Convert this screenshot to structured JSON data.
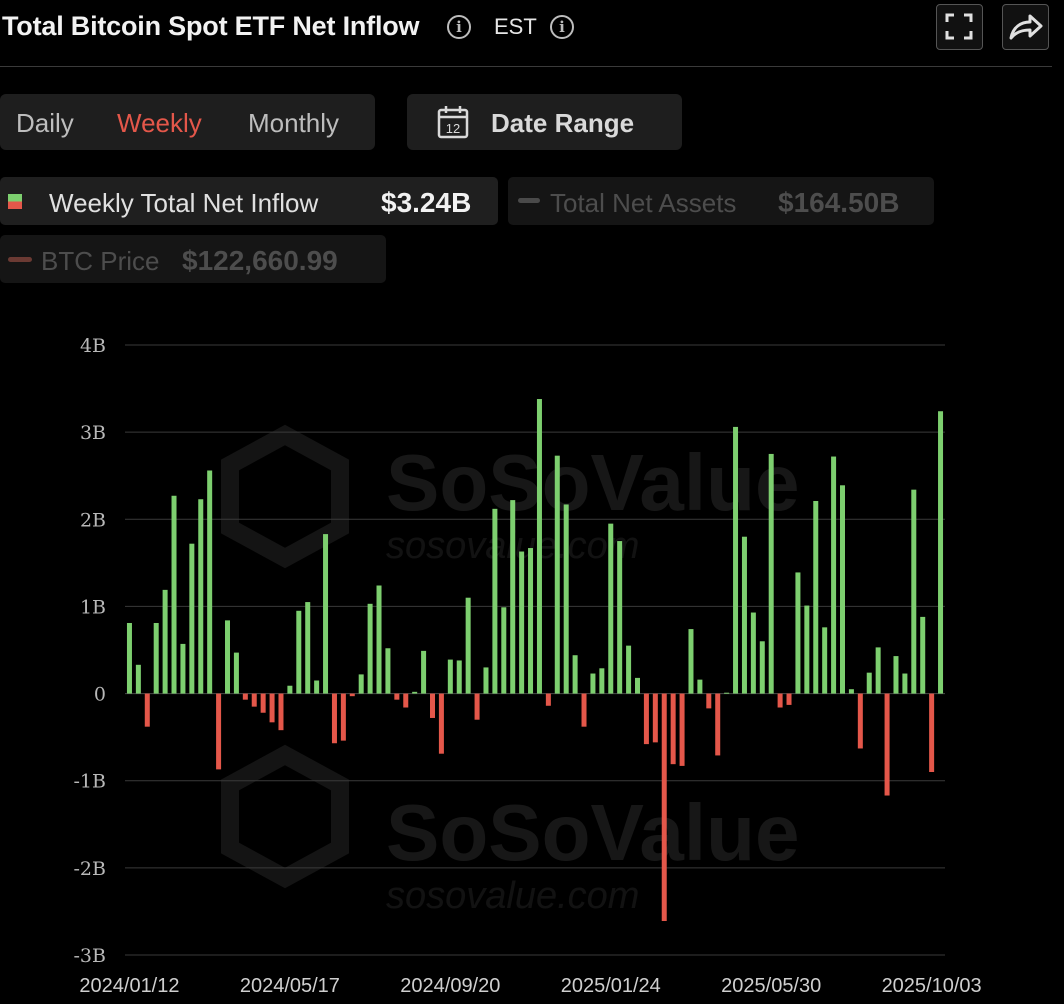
{
  "header": {
    "title": "Total Bitcoin Spot ETF Net Inflow",
    "timezone": "EST",
    "info_icon": "info-icon",
    "fullscreen_icon": "fullscreen-icon",
    "share_icon": "share-icon"
  },
  "period_tabs": [
    {
      "label": "Daily",
      "active": false
    },
    {
      "label": "Weekly",
      "active": true
    },
    {
      "label": "Monthly",
      "active": false
    }
  ],
  "date_range": {
    "label": "Date Range",
    "icon": "calendar-icon",
    "icon_text": "12"
  },
  "legend": [
    {
      "name": "Weekly Total Net Inflow",
      "value": "$3.24B",
      "active": true
    },
    {
      "name": "Total Net Assets",
      "value": "$164.50B",
      "active": false
    },
    {
      "name": "BTC Price",
      "value": "$122,660.99",
      "active": false
    }
  ],
  "watermark": {
    "brand": "SoSoValue",
    "url": "sosovalue.com"
  },
  "colors": {
    "positive": "#7dcf6f",
    "negative": "#e4574a",
    "active_tab": "#e4574a"
  },
  "chart_data": {
    "type": "bar",
    "title": "Total Bitcoin Spot ETF Net Inflow",
    "ylabel": "",
    "xlabel": "",
    "ylim": [
      -3,
      4
    ],
    "y_ticks": [
      "4B",
      "3B",
      "2B",
      "1B",
      "0",
      "-1B",
      "-2B",
      "-3B"
    ],
    "y_tick_values": [
      4,
      3,
      2,
      1,
      0,
      -1,
      -2,
      -3
    ],
    "x_tick_labels": [
      "2024/01/12",
      "2024/05/17",
      "2024/09/20",
      "2025/01/24",
      "2025/05/30",
      "2025/10/03"
    ],
    "grid": true,
    "unit": "B",
    "series": [
      {
        "name": "Weekly Total Net Inflow",
        "values": [
          0.81,
          0.33,
          -0.38,
          0.81,
          1.19,
          2.27,
          0.57,
          1.72,
          2.23,
          2.56,
          -0.87,
          0.84,
          0.47,
          -0.07,
          -0.15,
          -0.22,
          -0.33,
          -0.42,
          0.09,
          0.95,
          1.05,
          0.15,
          1.83,
          -0.57,
          -0.54,
          -0.03,
          0.22,
          1.03,
          1.24,
          0.52,
          -0.07,
          -0.16,
          0.02,
          0.49,
          -0.28,
          -0.69,
          0.39,
          0.38,
          1.1,
          -0.3,
          0.3,
          2.12,
          0.99,
          2.22,
          1.63,
          1.67,
          3.38,
          -0.14,
          2.73,
          2.17,
          0.44,
          -0.38,
          0.23,
          0.29,
          1.95,
          1.75,
          0.55,
          0.18,
          -0.58,
          -0.56,
          -2.61,
          -0.81,
          -0.83,
          0.74,
          0.16,
          -0.17,
          -0.71,
          0.01,
          3.06,
          1.8,
          0.93,
          0.6,
          2.75,
          -0.16,
          -0.13,
          1.39,
          1.01,
          2.21,
          0.76,
          2.72,
          2.39,
          0.05,
          -0.63,
          0.24,
          0.53,
          -1.17,
          0.43,
          0.23,
          2.34,
          0.88,
          -0.9,
          3.24
        ]
      }
    ]
  }
}
